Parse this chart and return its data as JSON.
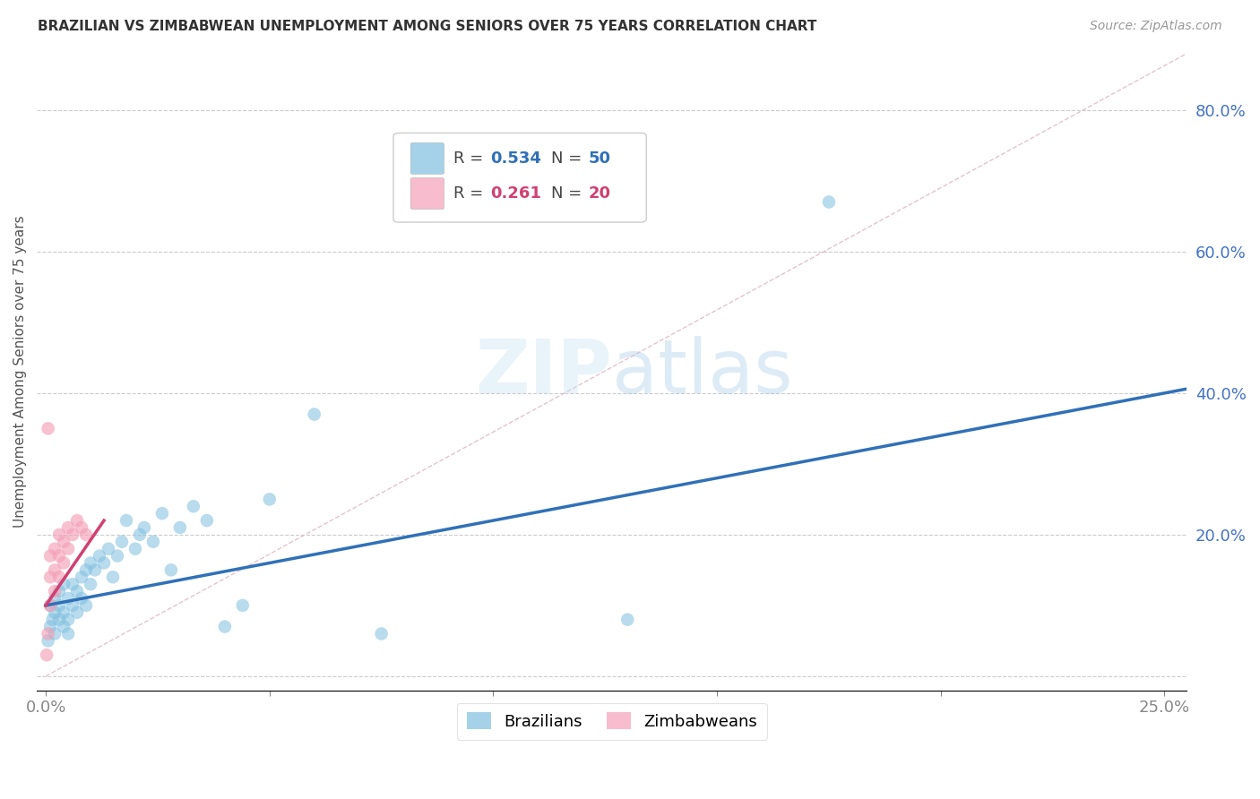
{
  "title": "BRAZILIAN VS ZIMBABWEAN UNEMPLOYMENT AMONG SENIORS OVER 75 YEARS CORRELATION CHART",
  "source": "Source: ZipAtlas.com",
  "ylabel": "Unemployment Among Seniors over 75 years",
  "xlim": [
    -0.002,
    0.255
  ],
  "ylim": [
    -0.02,
    0.88
  ],
  "brazil_R": 0.534,
  "brazil_N": 50,
  "zimb_R": 0.261,
  "zimb_N": 20,
  "brazil_color": "#7fbfdf",
  "zimb_color": "#f4a0b8",
  "brazil_line_color": "#3070b8",
  "zimb_line_color": "#d04070",
  "diag_color": "#e0b8c8",
  "background_color": "#ffffff",
  "tick_color": "#4472c4",
  "brazil_x": [
    0.0005,
    0.001,
    0.001,
    0.0015,
    0.002,
    0.002,
    0.002,
    0.003,
    0.003,
    0.003,
    0.004,
    0.004,
    0.004,
    0.005,
    0.005,
    0.005,
    0.006,
    0.006,
    0.007,
    0.007,
    0.008,
    0.008,
    0.009,
    0.009,
    0.01,
    0.01,
    0.011,
    0.012,
    0.013,
    0.014,
    0.015,
    0.016,
    0.017,
    0.018,
    0.02,
    0.021,
    0.022,
    0.024,
    0.026,
    0.028,
    0.03,
    0.033,
    0.036,
    0.04,
    0.044,
    0.05,
    0.06,
    0.075,
    0.13,
    0.175
  ],
  "brazil_y": [
    0.05,
    0.07,
    0.1,
    0.08,
    0.06,
    0.09,
    0.11,
    0.08,
    0.1,
    0.12,
    0.07,
    0.09,
    0.13,
    0.08,
    0.11,
    0.06,
    0.1,
    0.13,
    0.09,
    0.12,
    0.11,
    0.14,
    0.1,
    0.15,
    0.13,
    0.16,
    0.15,
    0.17,
    0.16,
    0.18,
    0.14,
    0.17,
    0.19,
    0.22,
    0.18,
    0.2,
    0.21,
    0.19,
    0.23,
    0.15,
    0.21,
    0.24,
    0.22,
    0.07,
    0.1,
    0.25,
    0.37,
    0.06,
    0.08,
    0.67
  ],
  "zimb_x": [
    0.0002,
    0.0005,
    0.001,
    0.001,
    0.001,
    0.002,
    0.002,
    0.002,
    0.003,
    0.003,
    0.003,
    0.004,
    0.004,
    0.005,
    0.005,
    0.006,
    0.007,
    0.008,
    0.009,
    0.0005
  ],
  "zimb_y": [
    0.03,
    0.06,
    0.1,
    0.14,
    0.17,
    0.12,
    0.15,
    0.18,
    0.14,
    0.17,
    0.2,
    0.16,
    0.19,
    0.18,
    0.21,
    0.2,
    0.22,
    0.21,
    0.2,
    0.35
  ],
  "legend_brazil_label": "Brazilians",
  "legend_zimb_label": "Zimbabweans"
}
